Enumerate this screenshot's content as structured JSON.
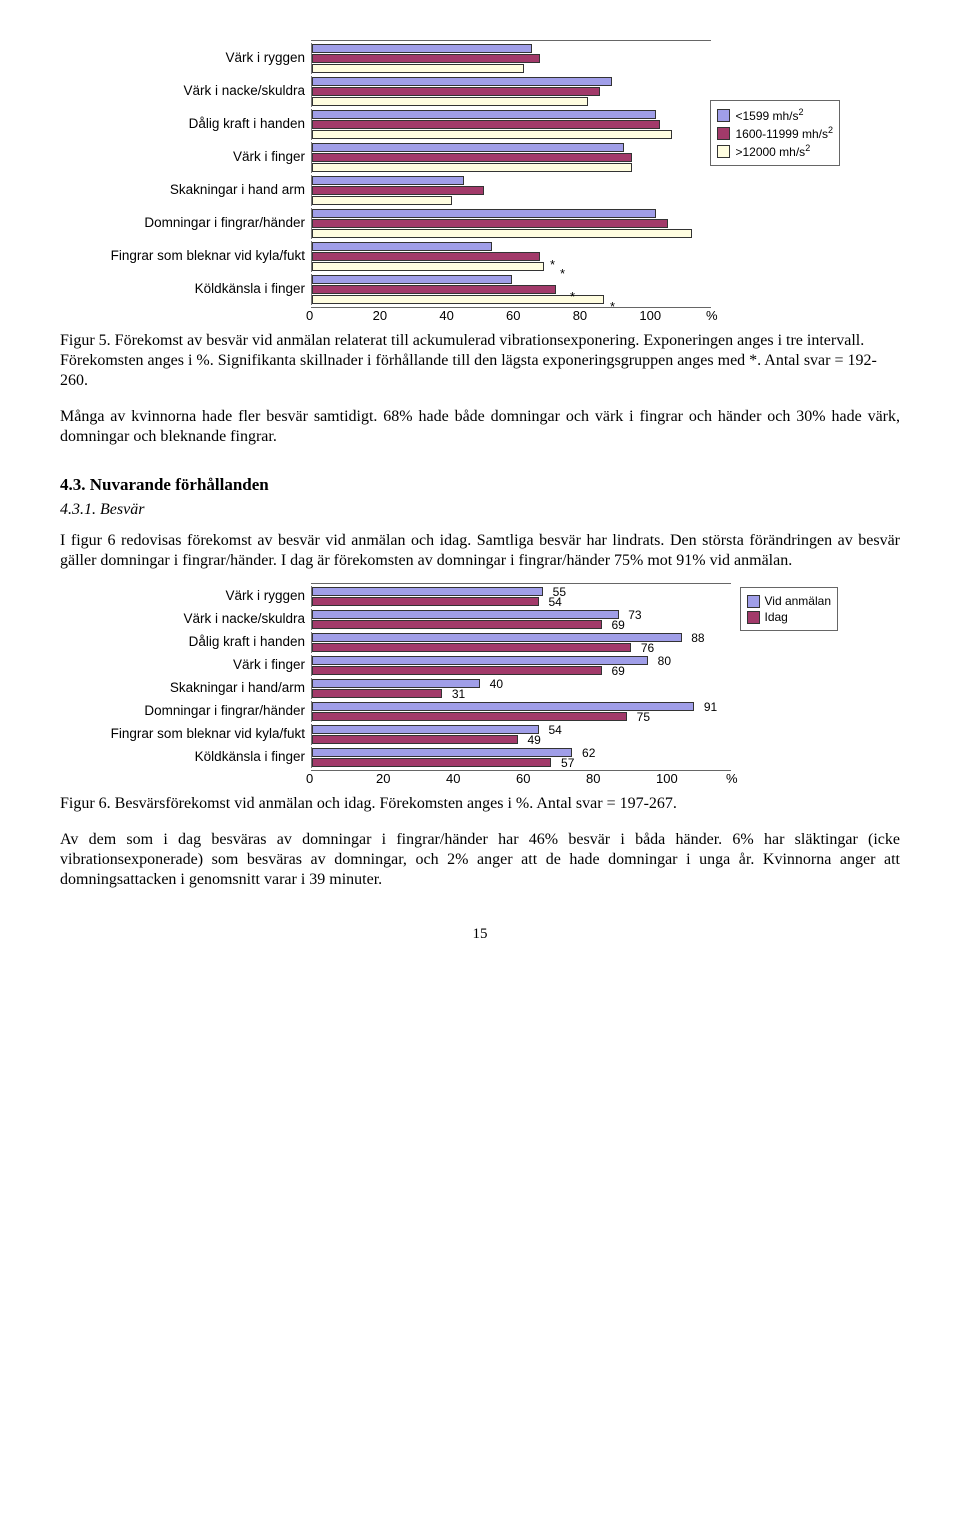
{
  "chart1": {
    "type": "bar-horizontal-grouped",
    "x_max": 100,
    "xticks": [
      0,
      20,
      40,
      60,
      80,
      100
    ],
    "x_unit": "%",
    "bar_colors": [
      "#a09ee8",
      "#a23a6a",
      "#fffde0"
    ],
    "legend_items": [
      "<1599 mh/s",
      "1600-11999 mh/s",
      ">12000 mh/s"
    ],
    "legend_sup": "2",
    "annotations": [
      "*",
      "*",
      "*",
      "*"
    ],
    "categories": [
      {
        "label": "Värk i ryggen",
        "values": [
          55,
          57,
          53
        ]
      },
      {
        "label": "Värk i nacke/skuldra",
        "values": [
          75,
          72,
          69
        ]
      },
      {
        "label": "Dålig kraft i handen",
        "values": [
          86,
          87,
          90
        ]
      },
      {
        "label": "Värk i finger",
        "values": [
          78,
          80,
          80
        ]
      },
      {
        "label": "Skakningar i hand arm",
        "values": [
          38,
          43,
          35
        ]
      },
      {
        "label": "Domningar i fingrar/händer",
        "values": [
          86,
          89,
          95
        ]
      },
      {
        "label": "Fingrar som bleknar vid kyla/fukt",
        "values": [
          45,
          57,
          58
        ]
      },
      {
        "label": "Köldkänsla i finger",
        "values": [
          50,
          61,
          73
        ]
      }
    ]
  },
  "caption1": "Figur 5. Förekomst av besvär vid anmälan relaterat till ackumulerad vibrationsexponering. Exponeringen anges i tre intervall. Förekomsten anges i %. Signifikanta skillnader i förhållande till den lägsta exponeringsgruppen anges med *. Antal svar = 192-260.",
  "para1": "Många av kvinnorna hade fler besvär samtidigt. 68% hade både domningar och värk i fingrar och händer och 30% hade värk, domningar och bleknande fingrar.",
  "heading43": "4.3. Nuvarande förhållanden",
  "heading431": "4.3.1. Besvär",
  "para2": "I figur 6 redovisas förekomst av besvär vid anmälan och idag. Samtliga besvär har lindrats. Den största förändringen av besvär gäller domningar i fingrar/händer. I dag är förekomsten av domningar i fingrar/händer 75% mot 91% vid anmälan.",
  "chart2": {
    "type": "bar-horizontal-grouped",
    "x_max": 100,
    "xticks": [
      0,
      20,
      40,
      60,
      80,
      100
    ],
    "x_unit": "%",
    "bar_colors": [
      "#a09ee8",
      "#a23a6a"
    ],
    "legend_items": [
      "Vid  anmälan",
      "Idag"
    ],
    "categories": [
      {
        "label": "Värk  i ryggen",
        "values": [
          55,
          54
        ]
      },
      {
        "label": "Värk i nacke/skuldra",
        "values": [
          73,
          69
        ]
      },
      {
        "label": "Dålig kraft i handen",
        "values": [
          88,
          76
        ]
      },
      {
        "label": "Värk i finger",
        "values": [
          80,
          69
        ]
      },
      {
        "label": "Skakningar i hand/arm",
        "values": [
          40,
          31
        ]
      },
      {
        "label": "Domningar i fingrar/händer",
        "values": [
          91,
          75
        ]
      },
      {
        "label": "Fingrar som bleknar vid kyla/fukt",
        "values": [
          54,
          49
        ]
      },
      {
        "label": "Köldkänsla i finger",
        "values": [
          62,
          57
        ]
      }
    ]
  },
  "caption2": "Figur 6. Besvärsförekomst vid anmälan och idag. Förekomsten anges i %. Antal svar = 197-267.",
  "para3": "Av dem som i dag besväras av domningar i fingrar/händer har 46% besvär i båda händer. 6% har släktingar (icke vibrationsexponerade) som besväras av domningar, och 2% anger att de hade domningar i unga år. Kvinnorna anger att domningsattacken i genomsnitt varar i 39 minuter.",
  "pagenum": "15"
}
